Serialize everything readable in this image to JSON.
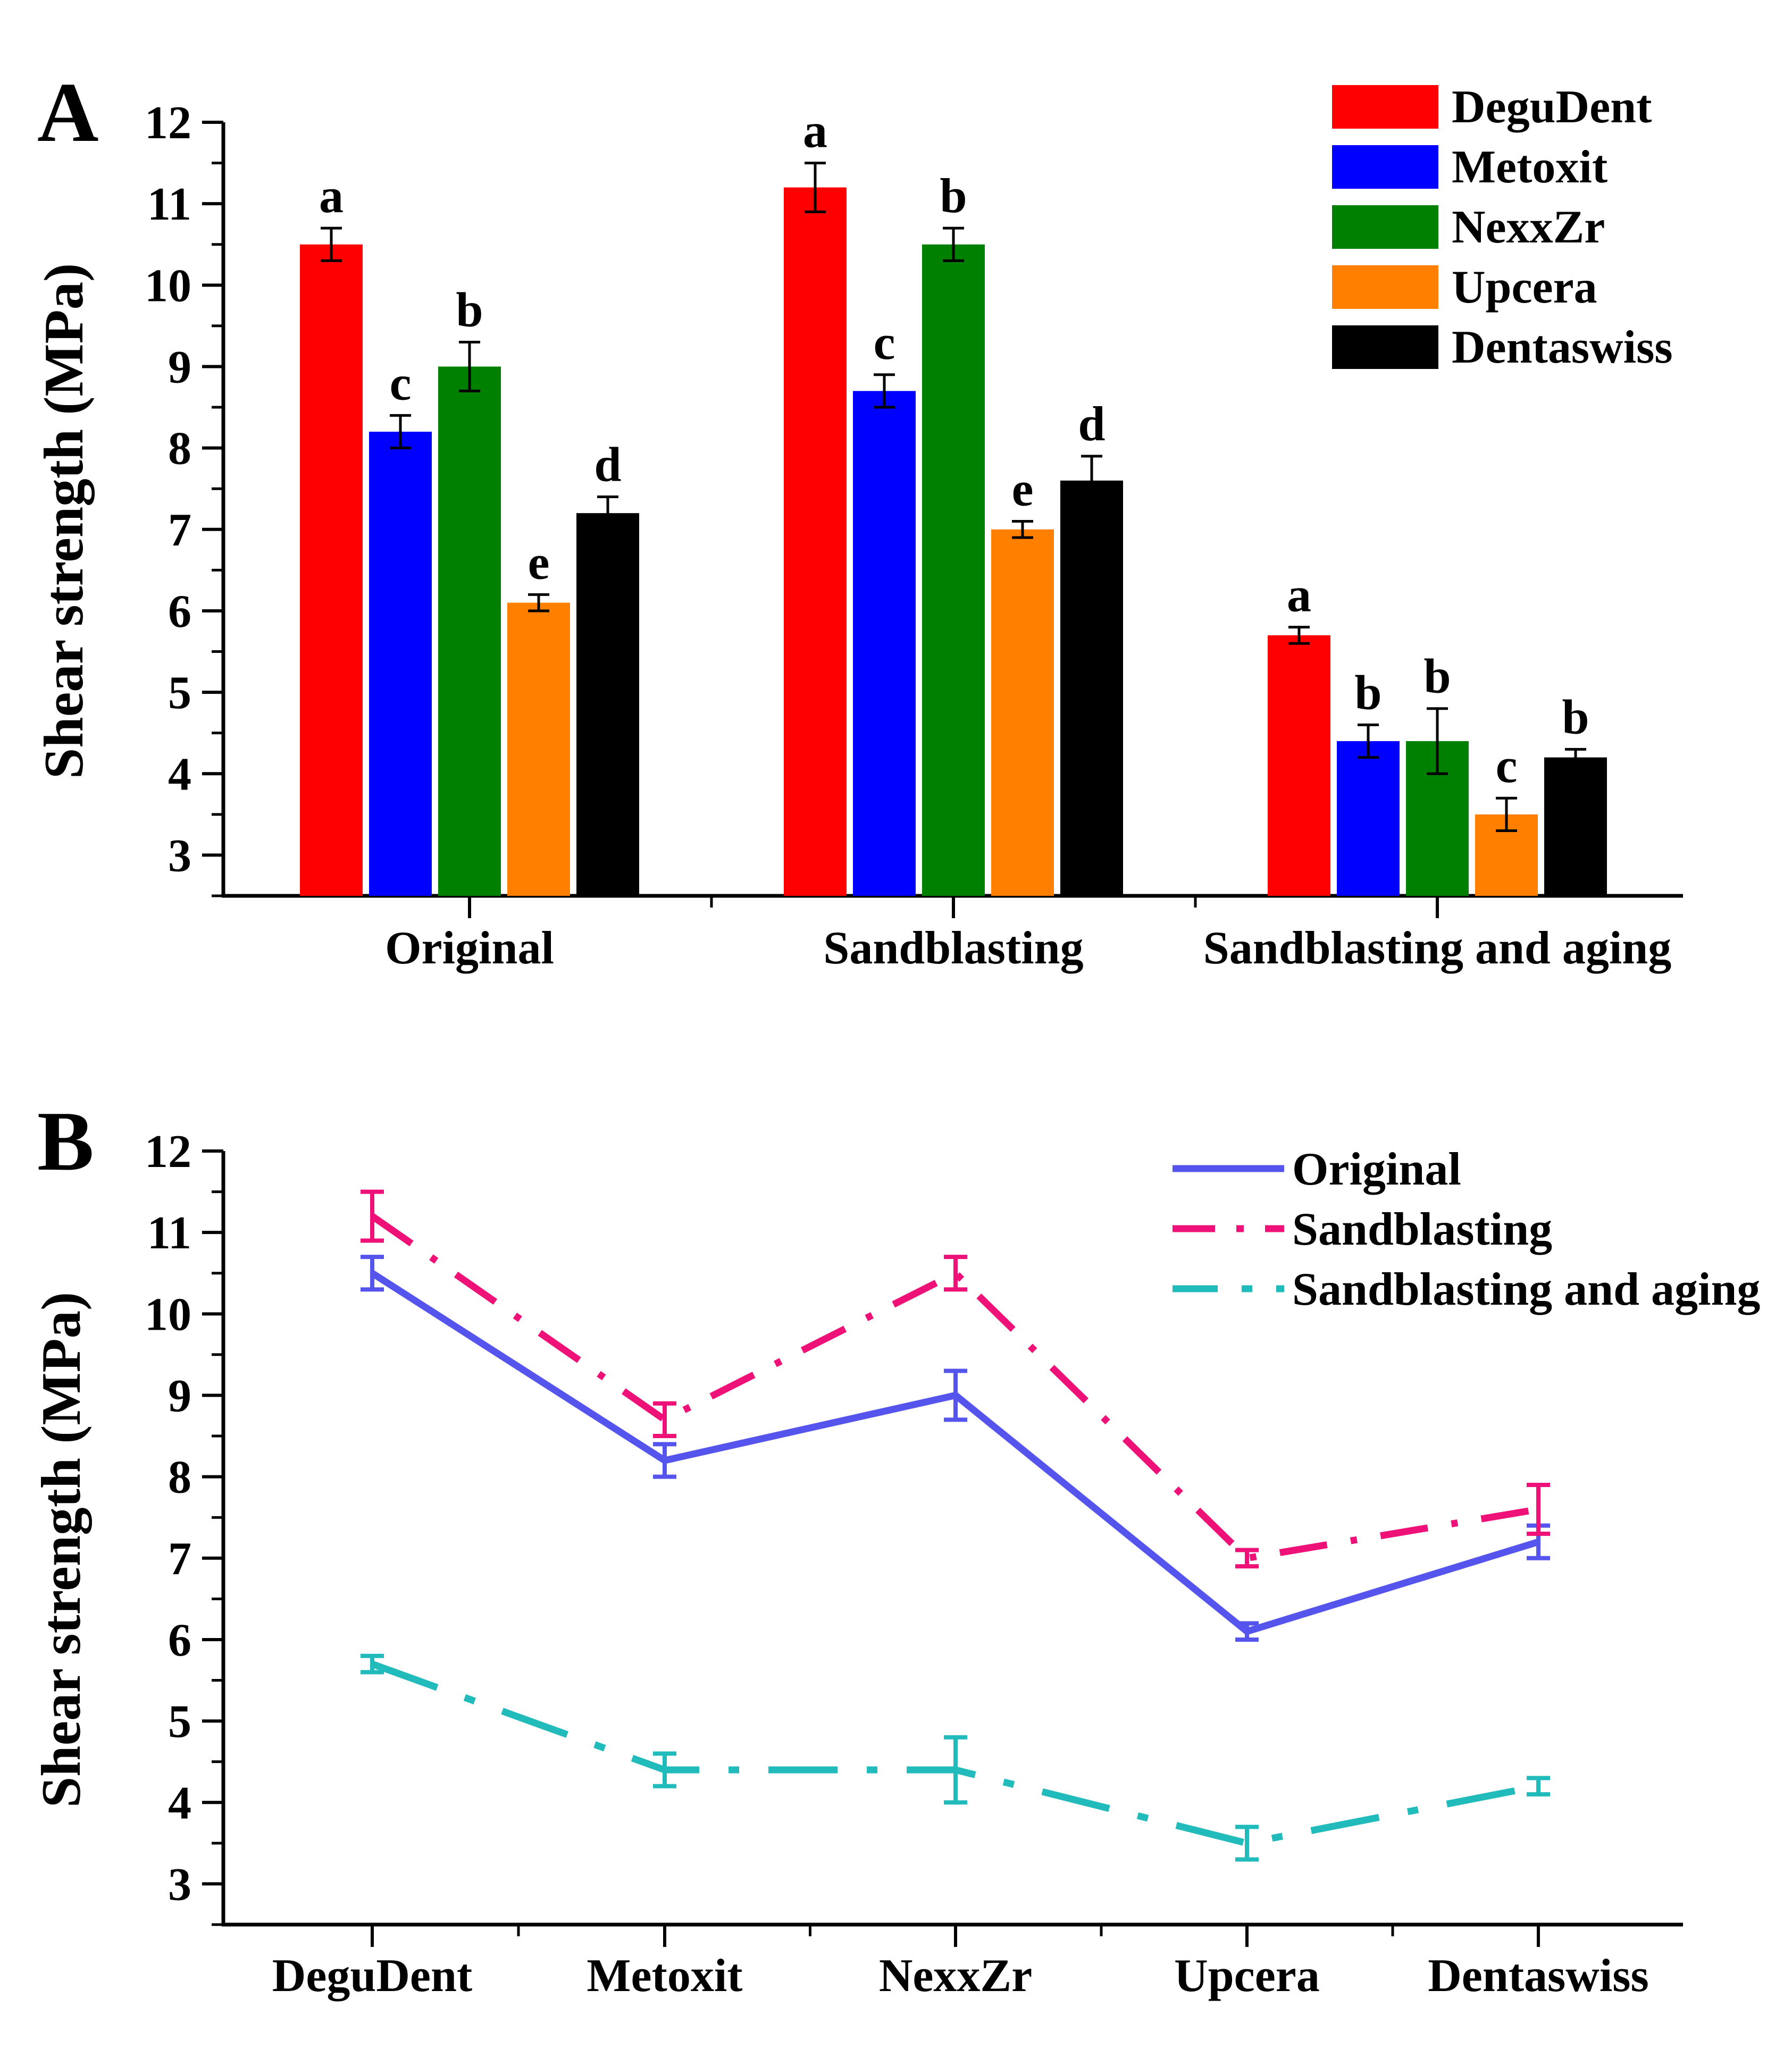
{
  "chart_data": [
    {
      "panel_label": "A",
      "type": "bar",
      "title": "",
      "xlabel": "",
      "ylabel": "Shear strength (MPa)",
      "ylim": [
        2.5,
        12
      ],
      "yticks": [
        "3",
        "4",
        "5",
        "6",
        "7",
        "8",
        "9",
        "10",
        "11",
        "12"
      ],
      "categories": [
        "Original",
        "Sandblasting",
        "Sandblasting and aging"
      ],
      "legend_position": "top-right",
      "series": [
        {
          "name": "DeguDent",
          "color": "#ff0000",
          "values": [
            10.5,
            11.2,
            5.7
          ],
          "errors": [
            0.2,
            0.3,
            0.1
          ],
          "letters": [
            "a",
            "a",
            "a"
          ]
        },
        {
          "name": "Metoxit",
          "color": "#0000ff",
          "values": [
            8.2,
            8.7,
            4.4
          ],
          "errors": [
            0.2,
            0.2,
            0.2
          ],
          "letters": [
            "c",
            "c",
            "b"
          ]
        },
        {
          "name": "NexxZr",
          "color": "#008000",
          "values": [
            9.0,
            10.5,
            4.4
          ],
          "errors": [
            0.3,
            0.2,
            0.4
          ],
          "letters": [
            "b",
            "b",
            "b"
          ]
        },
        {
          "name": "Upcera",
          "color": "#ff8000",
          "values": [
            6.1,
            7.0,
            3.5
          ],
          "errors": [
            0.1,
            0.1,
            0.2
          ],
          "letters": [
            "e",
            "e",
            "c"
          ]
        },
        {
          "name": "Dentaswiss",
          "color": "#000000",
          "values": [
            7.2,
            7.6,
            4.2
          ],
          "errors": [
            0.2,
            0.3,
            0.1
          ],
          "letters": [
            "d",
            "d",
            "b"
          ]
        }
      ]
    },
    {
      "panel_label": "B",
      "type": "line",
      "title": "",
      "xlabel": "",
      "ylabel": "Shear strength (MPa)",
      "ylim": [
        2.5,
        12
      ],
      "yticks": [
        "3",
        "4",
        "5",
        "6",
        "7",
        "8",
        "9",
        "10",
        "11",
        "12"
      ],
      "categories": [
        "DeguDent",
        "Metoxit",
        "NexxZr",
        "Upcera",
        "Dentaswiss"
      ],
      "legend_position": "top-right",
      "series": [
        {
          "name": "Original",
          "color": "#5555ee",
          "dash": "solid",
          "values": [
            10.5,
            8.2,
            9.0,
            6.1,
            7.2
          ],
          "errors": [
            0.2,
            0.2,
            0.3,
            0.1,
            0.2
          ]
        },
        {
          "name": "Sandblasting",
          "color": "#ee1177",
          "dash": "dash-dot",
          "values": [
            11.2,
            8.7,
            10.5,
            7.0,
            7.6
          ],
          "errors": [
            0.3,
            0.2,
            0.2,
            0.1,
            0.3
          ]
        },
        {
          "name": "Sandblasting and aging",
          "color": "#22bbbb",
          "dash": "dash-dot",
          "values": [
            5.7,
            4.4,
            4.4,
            3.5,
            4.2
          ],
          "errors": [
            0.1,
            0.2,
            0.4,
            0.2,
            0.1
          ]
        }
      ]
    }
  ]
}
